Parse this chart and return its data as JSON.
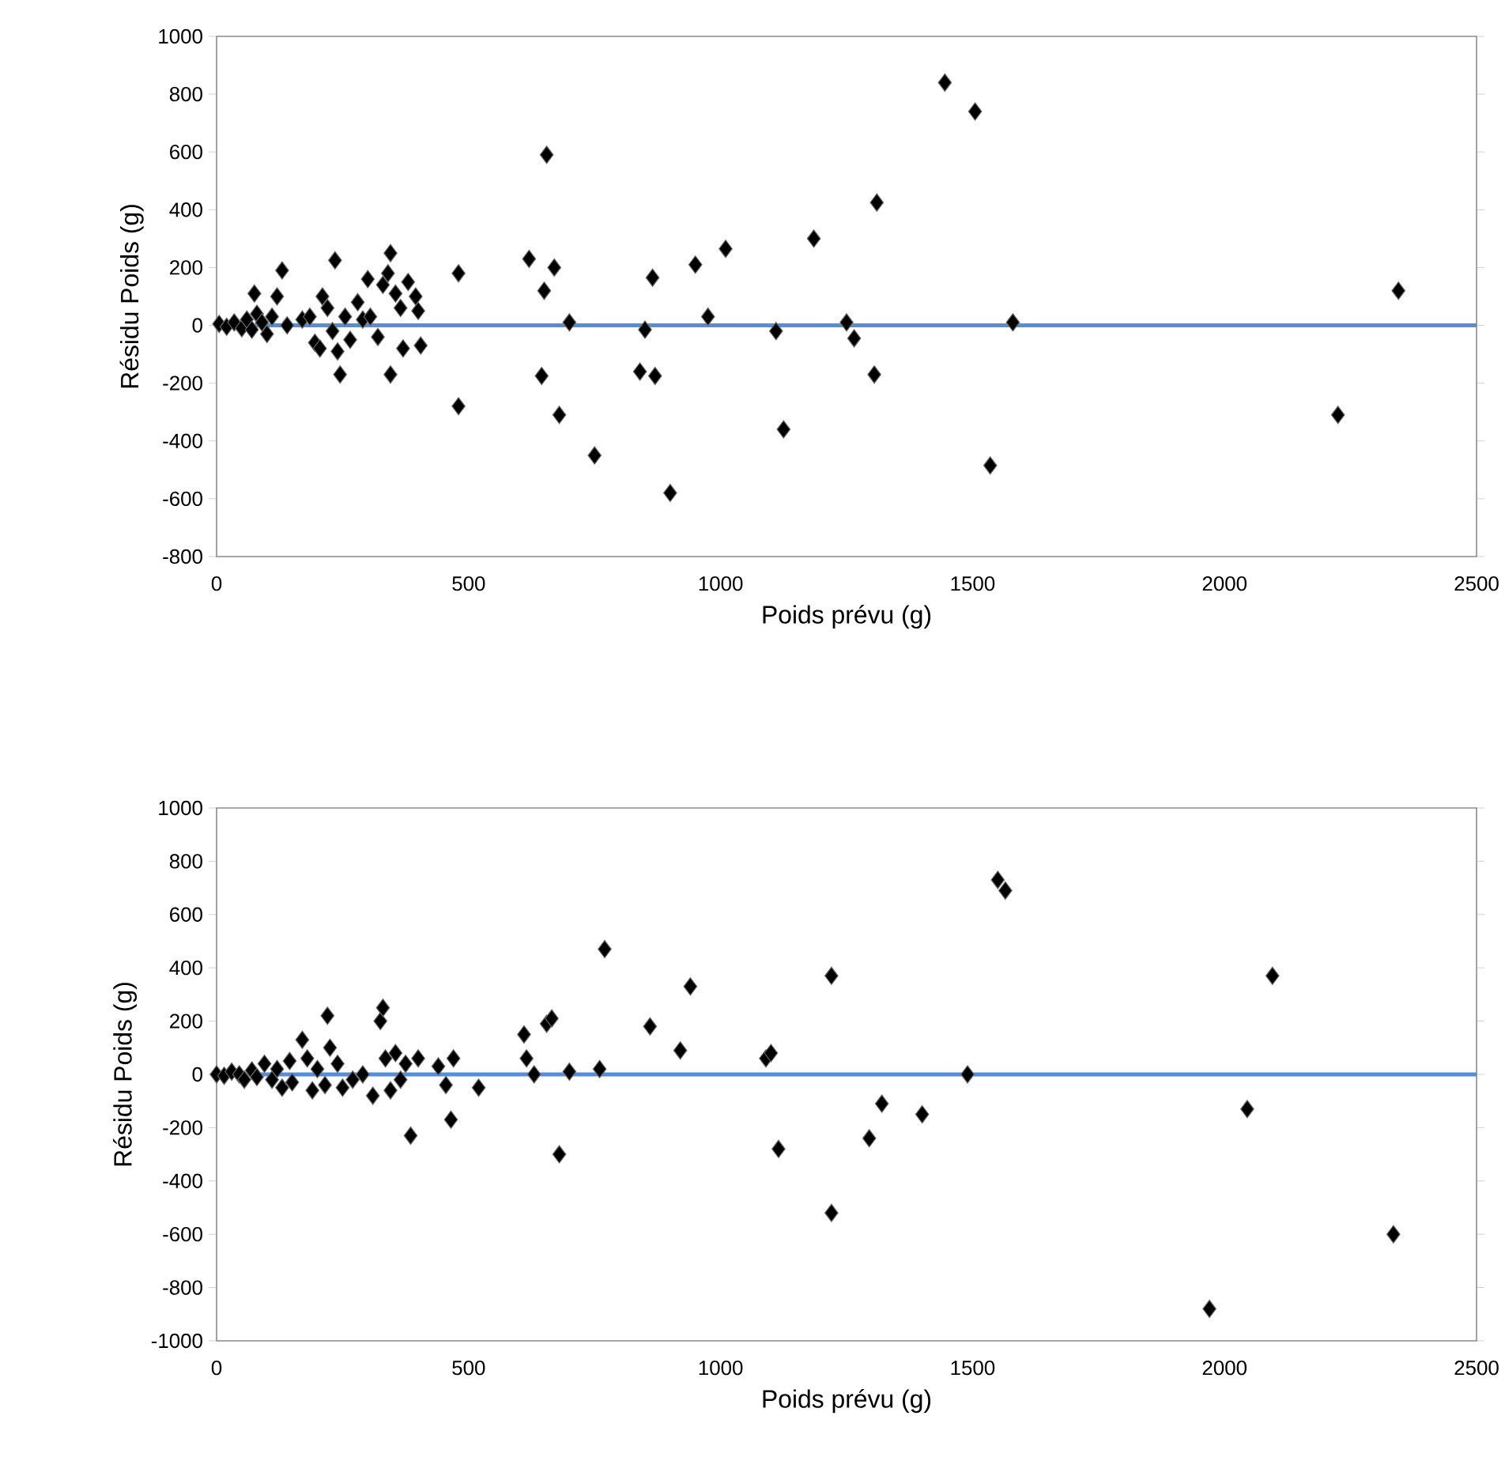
{
  "chart_data": [
    {
      "type": "scatter",
      "xlabel": "Poids prévu (g)",
      "ylabel": "Résidu Poids (g)",
      "marker": "diamond",
      "xlim": [
        0,
        2500
      ],
      "xticks": [
        0,
        500,
        1000,
        1500,
        2000,
        2500
      ],
      "ylim": [
        -800,
        1000
      ],
      "yticks": [
        -800,
        -600,
        -400,
        -200,
        0,
        200,
        400,
        600,
        800,
        1000
      ],
      "ref_lines": [
        {
          "axis": "y",
          "value": 0,
          "color": "#558ed5"
        }
      ],
      "series": [
        {
          "color": "#000000",
          "x": [
            5,
            20,
            35,
            50,
            60,
            70,
            80,
            90,
            100,
            110,
            120,
            130,
            75,
            140,
            170,
            185,
            195,
            205,
            210,
            220,
            230,
            235,
            240,
            245,
            255,
            265,
            280,
            290,
            300,
            305,
            320,
            330,
            340,
            345,
            345,
            355,
            365,
            370,
            380,
            395,
            400,
            405,
            480,
            480,
            620,
            645,
            650,
            655,
            670,
            680,
            700,
            750,
            840,
            850,
            865,
            870,
            900,
            950,
            975,
            1010,
            1110,
            1125,
            1185,
            1250,
            1265,
            1305,
            1310,
            1445,
            1505,
            1535,
            1580,
            2225,
            2345
          ],
          "values": [
            5,
            -5,
            10,
            -10,
            20,
            -15,
            40,
            10,
            -30,
            30,
            100,
            190,
            110,
            0,
            20,
            30,
            -60,
            -80,
            100,
            60,
            -20,
            225,
            -90,
            -170,
            30,
            -50,
            80,
            20,
            160,
            30,
            -40,
            140,
            180,
            250,
            -170,
            110,
            60,
            -80,
            150,
            100,
            50,
            -70,
            180,
            -280,
            230,
            -175,
            120,
            590,
            200,
            -310,
            10,
            -450,
            -160,
            -15,
            165,
            -175,
            -580,
            210,
            30,
            265,
            -20,
            -360,
            300,
            10,
            -45,
            -170,
            425,
            840,
            740,
            -485,
            10,
            -310,
            120
          ]
        }
      ]
    },
    {
      "type": "scatter",
      "xlabel": "Poids prévu (g)",
      "ylabel": "Résidu Poids (g)",
      "marker": "diamond",
      "xlim": [
        0,
        2500
      ],
      "xticks": [
        0,
        500,
        1000,
        1500,
        2000,
        2500
      ],
      "ylim": [
        -1000,
        1000
      ],
      "yticks": [
        -1000,
        -800,
        -600,
        -400,
        -200,
        0,
        200,
        400,
        600,
        800,
        1000
      ],
      "ref_lines": [
        {
          "axis": "y",
          "value": 0,
          "color": "#558ed5"
        }
      ],
      "series": [
        {
          "color": "#000000",
          "x": [
            0,
            15,
            30,
            45,
            55,
            70,
            80,
            95,
            110,
            120,
            130,
            145,
            150,
            170,
            180,
            190,
            200,
            215,
            220,
            225,
            240,
            250,
            270,
            290,
            310,
            325,
            330,
            335,
            345,
            355,
            365,
            375,
            385,
            400,
            440,
            455,
            465,
            470,
            520,
            610,
            615,
            630,
            655,
            665,
            680,
            700,
            760,
            770,
            860,
            920,
            940,
            1090,
            1100,
            1115,
            1220,
            1220,
            1295,
            1320,
            1400,
            1490,
            1550,
            1565,
            1970,
            2045,
            2095,
            2335
          ],
          "values": [
            0,
            -5,
            10,
            0,
            -20,
            15,
            -10,
            40,
            -20,
            20,
            -50,
            50,
            -30,
            130,
            60,
            -60,
            20,
            -40,
            220,
            100,
            40,
            -50,
            -20,
            0,
            -80,
            200,
            250,
            60,
            -60,
            80,
            -20,
            40,
            -230,
            60,
            30,
            -40,
            -170,
            60,
            -50,
            150,
            60,
            0,
            190,
            210,
            -300,
            10,
            20,
            470,
            180,
            90,
            330,
            60,
            80,
            -280,
            370,
            -520,
            -240,
            -110,
            -150,
            0,
            730,
            690,
            -880,
            -130,
            370,
            -600
          ]
        }
      ]
    }
  ]
}
